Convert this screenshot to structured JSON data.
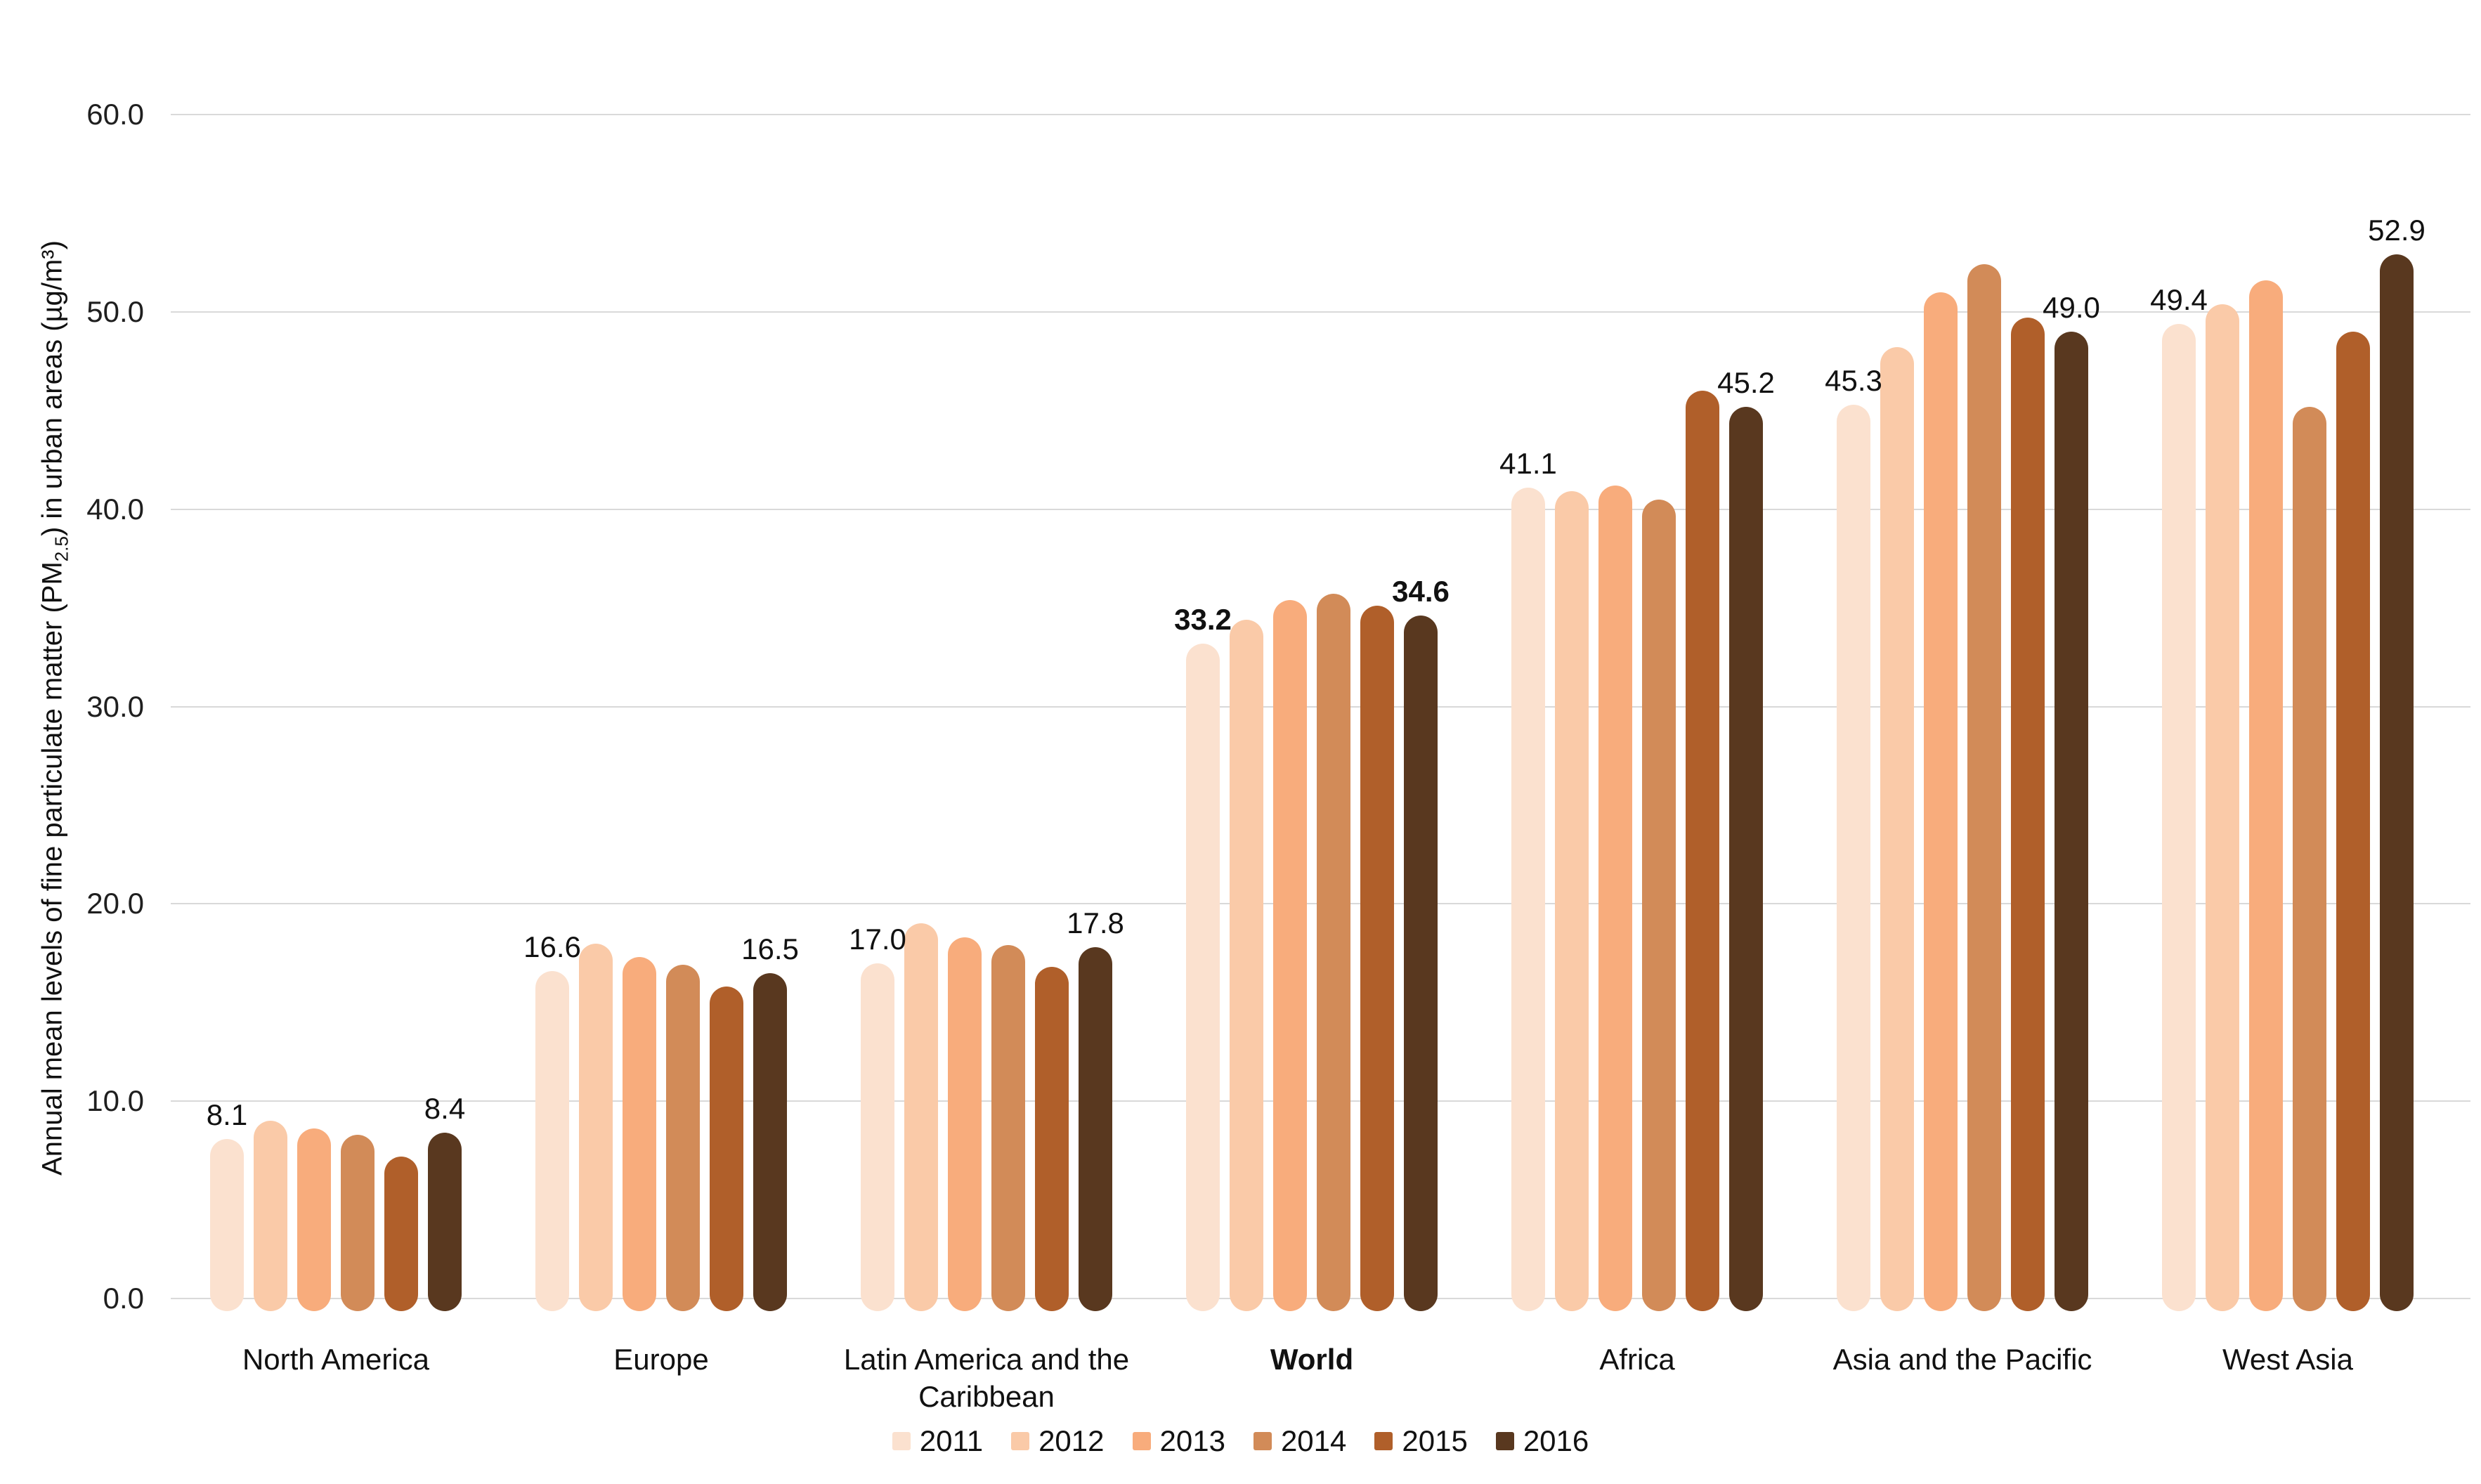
{
  "chart_data": {
    "type": "bar",
    "title": "",
    "ylabel_parts": {
      "pre": "Annual mean levels of fine particulate matter (PM",
      "sub": "2.5",
      "post": ") in urban areas (µg/m³)"
    },
    "years": [
      "2011",
      "2012",
      "2013",
      "2014",
      "2015",
      "2016"
    ],
    "year_colors": [
      "#FBE1CF",
      "#FACAA8",
      "#F8AC7C",
      "#D28B58",
      "#B05F2A",
      "#59381F"
    ],
    "groups": [
      {
        "label": "North America",
        "bold": false,
        "values": [
          8.1,
          9.0,
          8.6,
          8.3,
          7.2,
          8.4
        ],
        "first_label": "8.1",
        "last_label": "8.4"
      },
      {
        "label": "Europe",
        "bold": false,
        "values": [
          16.6,
          18.0,
          17.3,
          16.9,
          15.8,
          16.5
        ],
        "first_label": "16.6",
        "last_label": "16.5"
      },
      {
        "label": "Latin America and the Caribbean",
        "bold": false,
        "values": [
          17.0,
          19.0,
          18.3,
          17.9,
          16.8,
          17.8
        ],
        "first_label": "17.0",
        "last_label": "17.8"
      },
      {
        "label": "World",
        "bold": true,
        "values": [
          33.2,
          34.4,
          35.4,
          35.7,
          35.1,
          34.6
        ],
        "first_label": "33.2",
        "last_label": "34.6"
      },
      {
        "label": "Africa",
        "bold": false,
        "values": [
          41.1,
          40.9,
          41.2,
          40.5,
          46.0,
          45.2
        ],
        "first_label": "41.1",
        "last_label": "45.2"
      },
      {
        "label": "Asia and the Pacific",
        "bold": false,
        "values": [
          45.3,
          48.2,
          51.0,
          52.4,
          49.7,
          49.0
        ],
        "first_label": "45.3",
        "last_label": "49.0"
      },
      {
        "label": "West Asia",
        "bold": false,
        "values": [
          49.4,
          50.4,
          51.6,
          45.2,
          49.0,
          52.9
        ],
        "first_label": "49.4",
        "last_label": "52.9"
      }
    ],
    "ylim": [
      0,
      60
    ],
    "ytick_values": [
      0,
      10,
      20,
      30,
      40,
      50,
      60
    ],
    "ytick_labels": [
      "0.0",
      "10.0",
      "20.0",
      "30.0",
      "40.0",
      "50.0",
      "60.0"
    ],
    "grid": true,
    "legend_position": "bottom"
  }
}
